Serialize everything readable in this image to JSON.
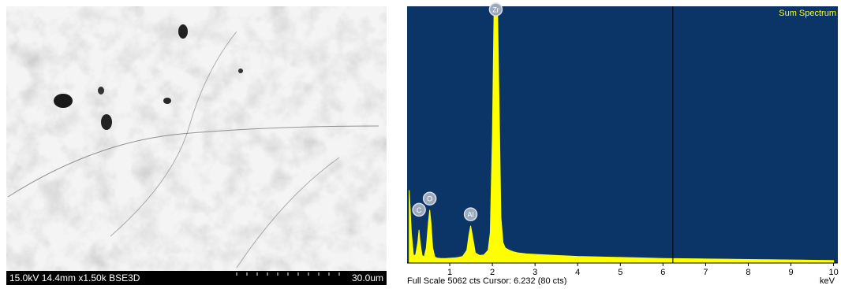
{
  "sem_image": {
    "info": "15.0kV 14.4mm x1.50k BSE3D",
    "scale_bar": "30.0um"
  },
  "chart_data": {
    "type": "area",
    "legend": "Sum Spectrum",
    "xlabel": "keV",
    "footer": "Full Scale 5062 cts Cursor: 6.232  (80 cts)",
    "color": "#ffff00",
    "background": "#0b3566",
    "cursor": 6.232,
    "xlim": [
      0,
      10.1
    ],
    "xticks": [
      1,
      2,
      3,
      4,
      5,
      6,
      7,
      8,
      9,
      10
    ],
    "ylim": [
      0,
      5062
    ],
    "x": [
      0.05,
      0.1,
      0.15,
      0.2,
      0.25,
      0.28,
      0.3,
      0.35,
      0.4,
      0.45,
      0.5,
      0.53,
      0.56,
      0.6,
      0.65,
      0.7,
      0.8,
      0.9,
      1.0,
      1.1,
      1.2,
      1.3,
      1.4,
      1.45,
      1.49,
      1.53,
      1.6,
      1.7,
      1.8,
      1.9,
      1.95,
      2.0,
      2.04,
      2.08,
      2.12,
      2.16,
      2.2,
      2.25,
      2.3,
      2.4,
      2.5,
      2.6,
      2.8,
      3.0,
      3.5,
      4.0,
      4.5,
      5.0,
      5.5,
      6.0,
      6.5,
      7.0,
      7.5,
      8.0,
      8.5,
      9.0,
      9.5,
      10.0
    ],
    "values": [
      1437,
      600,
      150,
      160,
      400,
      656,
      450,
      150,
      120,
      300,
      800,
      1047,
      800,
      300,
      120,
      100,
      90,
      90,
      95,
      100,
      110,
      130,
      250,
      550,
      734,
      550,
      200,
      150,
      160,
      250,
      600,
      2500,
      5062,
      5062,
      5062,
      3000,
      900,
      400,
      300,
      250,
      220,
      200,
      180,
      170,
      150,
      130,
      120,
      110,
      100,
      90,
      85,
      80,
      75,
      70,
      65,
      60,
      55,
      50
    ],
    "annotations": [
      {
        "text": "C",
        "x": 0.28,
        "y": 1050
      },
      {
        "text": "O",
        "x": 0.53,
        "y": 1270
      },
      {
        "text": "Al",
        "x": 1.49,
        "y": 960
      },
      {
        "text": "Zr",
        "x": 2.08,
        "y": 5000
      }
    ]
  }
}
